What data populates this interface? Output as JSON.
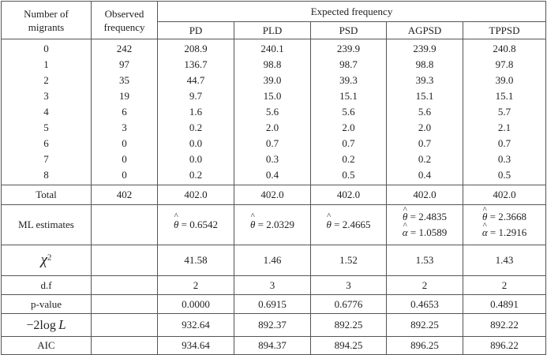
{
  "headers": {
    "number_of_migrants": "Number of\nmigrants",
    "observed_frequency": "Observed\nfrequency",
    "expected_frequency": "Expected frequency",
    "models": [
      "PD",
      "PLD",
      "PSD",
      "AGPSD",
      "TPPSD"
    ]
  },
  "rows": {
    "migrants": [
      "0",
      "1",
      "2",
      "3",
      "4",
      "5",
      "6",
      "7",
      "8"
    ],
    "observed": [
      "242",
      "97",
      "35",
      "19",
      "6",
      "3",
      "0",
      "0",
      "0"
    ],
    "pd": [
      "208.9",
      "136.7",
      "44.7",
      "9.7",
      "1.6",
      "0.2",
      "0.0",
      "0.0",
      "0.2"
    ],
    "pld": [
      "240.1",
      "98.8",
      "39.0",
      "15.0",
      "5.6",
      "2.0",
      "0.7",
      "0.3",
      "0.4"
    ],
    "psd": [
      "239.9",
      "98.7",
      "39.3",
      "15.1",
      "5.6",
      "2.0",
      "0.7",
      "0.2",
      "0.5"
    ],
    "agpsd": [
      "239.9",
      "98.8",
      "39.3",
      "15.1",
      "5.6",
      "2.0",
      "0.7",
      "0.2",
      "0.4"
    ],
    "tppsd": [
      "240.8",
      "97.8",
      "39.0",
      "15.1",
      "5.7",
      "2.1",
      "0.7",
      "0.3",
      "0.5"
    ]
  },
  "total": {
    "label": "Total",
    "values": [
      "402",
      "402.0",
      "402.0",
      "402.0",
      "402.0",
      "402.0"
    ]
  },
  "ml": {
    "label": "ML estimates",
    "theta_symbol": "θ",
    "alpha_symbol": "α",
    "eq": " = ",
    "pd_theta": "0.6542",
    "pld_theta": "2.0329",
    "psd_theta": "2.4665",
    "agpsd_theta": "2.4835",
    "agpsd_alpha": "1.0589",
    "tppsd_theta": "2.3668",
    "tppsd_alpha": "1.2916"
  },
  "chi2": {
    "symbol": "χ",
    "exponent": "2",
    "values": [
      "41.58",
      "1.46",
      "1.52",
      "1.53",
      "1.43"
    ]
  },
  "df": {
    "label": "d.f",
    "values": [
      "2",
      "3",
      "3",
      "2",
      "2"
    ]
  },
  "pvalue": {
    "label": "p-value",
    "values": [
      "0.0000",
      "0.6915",
      "0.6776",
      "0.4653",
      "0.4891"
    ]
  },
  "loglik": {
    "prefix": "−2log",
    "symbol": "L",
    "values": [
      "932.64",
      "892.37",
      "892.25",
      "892.25",
      "892.22"
    ]
  },
  "aic": {
    "label": "AIC",
    "values": [
      "934.64",
      "894.37",
      "894.25",
      "896.25",
      "896.22"
    ]
  }
}
